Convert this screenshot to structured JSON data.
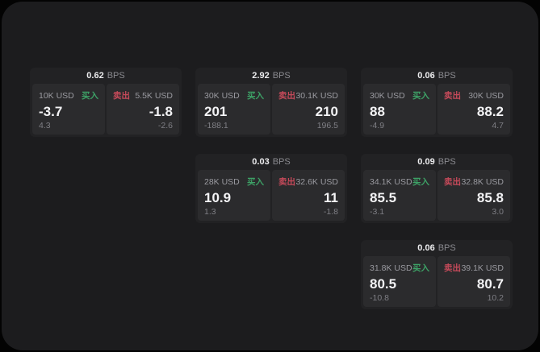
{
  "labels": {
    "bps_unit": "BPS",
    "buy": "买入",
    "sell": "卖出"
  },
  "colors": {
    "buy_green": "#3da166",
    "sell_red": "#c54a5a",
    "screen_bg": "#1c1c1e",
    "card_bg": "#222224",
    "panel_bg": "#2b2b2d"
  },
  "cards": [
    {
      "bps": "0.62",
      "buy": {
        "amount": "10K USD",
        "price": "-3.7",
        "change": "4.3"
      },
      "sell": {
        "amount": "5.5K USD",
        "price": "-1.8",
        "change": "-2.6"
      }
    },
    {
      "bps": "2.92",
      "buy": {
        "amount": "30K USD",
        "price": "201",
        "change": "-188.1"
      },
      "sell": {
        "amount": "30.1K USD",
        "price": "210",
        "change": "196.5"
      }
    },
    {
      "bps": "0.06",
      "buy": {
        "amount": "30K USD",
        "price": "88",
        "change": "-4.9"
      },
      "sell": {
        "amount": "30K USD",
        "price": "88.2",
        "change": "4.7"
      }
    },
    {
      "bps": "0.03",
      "buy": {
        "amount": "28K USD",
        "price": "10.9",
        "change": "1.3"
      },
      "sell": {
        "amount": "32.6K USD",
        "price": "11",
        "change": "-1.8"
      }
    },
    {
      "bps": "0.09",
      "buy": {
        "amount": "34.1K USD",
        "price": "85.5",
        "change": "-3.1"
      },
      "sell": {
        "amount": "32.8K USD",
        "price": "85.8",
        "change": "3.0"
      }
    },
    {
      "bps": "0.06",
      "buy": {
        "amount": "31.8K USD",
        "price": "80.5",
        "change": "-10.8"
      },
      "sell": {
        "amount": "39.1K USD",
        "price": "80.7",
        "change": "10.2"
      }
    }
  ]
}
